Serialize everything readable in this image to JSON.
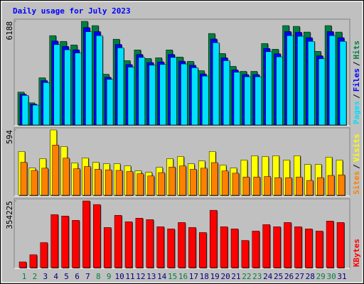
{
  "chart_data": {
    "type": "bar",
    "title": "Daily usage for July 2023",
    "categories": [
      "1",
      "2",
      "3",
      "4",
      "5",
      "6",
      "7",
      "8",
      "9",
      "10",
      "11",
      "12",
      "13",
      "14",
      "15",
      "16",
      "17",
      "18",
      "19",
      "20",
      "21",
      "22",
      "23",
      "24",
      "25",
      "26",
      "27",
      "28",
      "29",
      "30",
      "31"
    ],
    "category_colors": [
      "#008040",
      "#008040",
      "#000080",
      "#000080",
      "#000080",
      "#000080",
      "#000080",
      "#008040",
      "#008040",
      "#000080",
      "#000080",
      "#000080",
      "#000080",
      "#000080",
      "#008040",
      "#008040",
      "#000080",
      "#000080",
      "#000080",
      "#000080",
      "#000080",
      "#008040",
      "#008040",
      "#000080",
      "#000080",
      "#000080",
      "#000080",
      "#000080",
      "#008040",
      "#008040",
      "#000080"
    ],
    "legend_separator": "/",
    "panels": [
      {
        "ylim": [
          0,
          6188
        ],
        "yticks": [
          6188
        ],
        "legend_order": [
          2,
          1,
          0
        ],
        "series": [
          {
            "name": "Hits",
            "color": "#008040",
            "values": [
              1992,
              1356,
              2840,
              5340,
              5001,
              4789,
              6188,
              5934,
              3052,
              5128,
              3857,
              4493,
              3984,
              4026,
              4493,
              4069,
              3815,
              3264,
              5467,
              4281,
              3518,
              3221,
              3221,
              4874,
              4535,
              5934,
              5891,
              5552,
              4408,
              5934,
              5552
            ]
          },
          {
            "name": "Files",
            "color": "#0000ff",
            "values": [
              1870,
              1275,
              2670,
              5020,
              4700,
              4500,
              5820,
              5580,
              2870,
              4820,
              3625,
              4225,
              3745,
              3785,
              4225,
              3825,
              3585,
              3070,
              5140,
              4025,
              3305,
              3030,
              3030,
              4580,
              4265,
              5580,
              5540,
              5220,
              4145,
              5580,
              5220
            ]
          },
          {
            "name": "Pages",
            "color": "#00e0ff",
            "values": [
              1795,
              1220,
              2555,
              4805,
              4500,
              4310,
              5570,
              5340,
              2745,
              4615,
              3470,
              4045,
              3585,
              3625,
              4045,
              3660,
              3435,
              2940,
              4920,
              3855,
              3165,
              2900,
              2900,
              4385,
              4080,
              5340,
              5300,
              5000,
              3965,
              5340,
              5000
            ]
          }
        ]
      },
      {
        "ylim": [
          0,
          594
        ],
        "yticks": [
          594
        ],
        "legend_order": [
          1,
          0
        ],
        "series": [
          {
            "name": "Visits",
            "color": "#ffff00",
            "values": [
              400,
              252,
              336,
              594,
              445,
              297,
              342,
              303,
              290,
              290,
              271,
              226,
              213,
              258,
              336,
              355,
              290,
              316,
              400,
              278,
              252,
              323,
              362,
              355,
              362,
              323,
              362,
              284,
              284,
              349,
              323
            ]
          },
          {
            "name": "Sites",
            "color": "#ff8000",
            "values": [
              303,
              230,
              250,
              458,
              340,
              245,
              265,
              240,
              235,
              230,
              220,
              200,
              180,
              210,
              260,
              270,
              240,
              250,
              300,
              225,
              205,
              170,
              170,
              175,
              165,
              165,
              170,
              140,
              165,
              185,
              190
            ]
          }
        ]
      },
      {
        "ylim": [
          0,
          354225
        ],
        "yticks": [
          354225
        ],
        "legend_order": [
          0
        ],
        "series": [
          {
            "name": "KBytes",
            "color": "#ff0000",
            "values": [
              33915,
              71600,
              135660,
              282627,
              275090,
              252480,
              354225,
              335380,
              214800,
              278860,
              244950,
              263790,
              256250,
              218570,
              207260,
              241180,
              214800,
              188420,
              305240,
              218570,
              207260,
              146970,
              195960,
              229870,
              218570,
              241180,
              218570,
              207260,
              195960,
              248710,
              241180
            ]
          }
        ]
      }
    ]
  }
}
